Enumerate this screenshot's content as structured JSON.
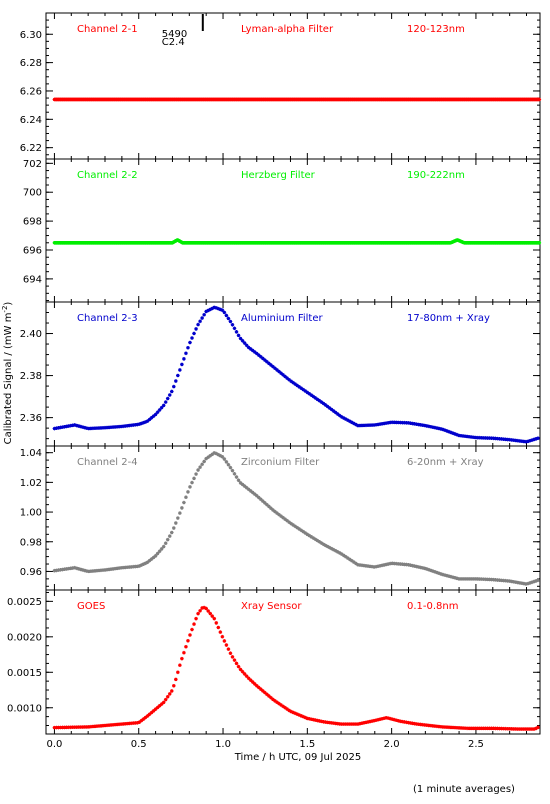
{
  "figure": {
    "ylabel": "Calibrated Signal / (mW m",
    "ylabel_sup": "-2",
    "ylabel_close": ")",
    "xlabel": "Time / h UTC, 09 Jul 2025",
    "footnote": "(1 minute averages)",
    "xticks": [
      "0.0",
      "0.5",
      "1.0",
      "1.5",
      "2.0",
      "2.5"
    ],
    "xlim": [
      -0.05,
      2.88
    ],
    "flare_marker": {
      "x": 0.88,
      "labels": [
        "5490",
        "C2.4"
      ]
    }
  },
  "chart_data": [
    {
      "type": "scatter",
      "channel_label": "Channel 2-1",
      "filter_label": "Lyman-alpha Filter",
      "band_label": "120-123nm",
      "color": "#ff0000",
      "ylim": [
        6.212,
        6.315
      ],
      "yticks": [
        "6.22",
        "6.24",
        "6.26",
        "6.28",
        "6.30"
      ],
      "x": [
        0.0,
        0.5,
        1.0,
        1.5,
        2.0,
        2.5,
        2.88
      ],
      "y": [
        6.254,
        6.254,
        6.254,
        6.254,
        6.254,
        6.254,
        6.254
      ]
    },
    {
      "type": "scatter",
      "channel_label": "Channel 2-2",
      "filter_label": "Herzberg Filter",
      "band_label": "190-222nm",
      "color": "#00ee00",
      "ylim": [
        692.4,
        702.3
      ],
      "yticks": [
        "694",
        "696",
        "698",
        "700",
        "702"
      ],
      "x": [
        0.0,
        0.5,
        0.7,
        0.73,
        0.76,
        1.0,
        1.5,
        2.0,
        2.35,
        2.39,
        2.43,
        2.88
      ],
      "y": [
        696.5,
        696.5,
        696.5,
        696.7,
        696.5,
        696.5,
        696.5,
        696.5,
        696.5,
        696.7,
        696.5,
        696.5
      ]
    },
    {
      "type": "scatter",
      "channel_label": "Channel 2-3",
      "filter_label": "Aluminium Filter",
      "band_label": "17-80nm + Xray",
      "color": "#0000cc",
      "ylim": [
        2.3465,
        2.415
      ],
      "yticks": [
        "2.36",
        "2.38",
        "2.40"
      ],
      "x": [
        0.0,
        0.12,
        0.2,
        0.3,
        0.4,
        0.5,
        0.55,
        0.6,
        0.65,
        0.7,
        0.75,
        0.8,
        0.85,
        0.9,
        0.95,
        1.0,
        1.05,
        1.1,
        1.15,
        1.2,
        1.3,
        1.4,
        1.5,
        1.6,
        1.7,
        1.8,
        1.9,
        2.0,
        2.1,
        2.2,
        2.3,
        2.4,
        2.5,
        2.6,
        2.7,
        2.8,
        2.88
      ],
      "y": [
        2.3548,
        2.3565,
        2.3548,
        2.3552,
        2.3558,
        2.3568,
        2.3582,
        2.3615,
        2.366,
        2.373,
        2.384,
        2.395,
        2.404,
        2.4105,
        2.4125,
        2.411,
        2.405,
        2.398,
        2.3935,
        2.3905,
        2.384,
        2.3775,
        2.372,
        2.3665,
        2.3605,
        2.3562,
        2.3565,
        2.3578,
        2.3575,
        2.3562,
        2.3545,
        2.3515,
        2.3505,
        2.3502,
        2.3495,
        2.3485,
        2.3505
      ]
    },
    {
      "type": "scatter",
      "channel_label": "Channel 2-4",
      "filter_label": "Zirconium Filter",
      "band_label": "6-20nm + Xray",
      "color": "#808080",
      "ylim": [
        0.9475,
        1.0445
      ],
      "yticks": [
        "0.96",
        "0.98",
        "1.00",
        "1.02",
        "1.04"
      ],
      "x": [
        0.0,
        0.12,
        0.2,
        0.3,
        0.4,
        0.5,
        0.55,
        0.6,
        0.65,
        0.7,
        0.75,
        0.8,
        0.85,
        0.9,
        0.95,
        1.0,
        1.05,
        1.1,
        1.15,
        1.2,
        1.3,
        1.4,
        1.5,
        1.6,
        1.7,
        1.8,
        1.9,
        2.0,
        2.1,
        2.2,
        2.3,
        2.4,
        2.5,
        2.6,
        2.7,
        2.8,
        2.88
      ],
      "y": [
        0.9605,
        0.9625,
        0.96,
        0.961,
        0.9625,
        0.9635,
        0.966,
        0.9705,
        0.977,
        0.987,
        1.001,
        1.016,
        1.028,
        1.036,
        1.04,
        1.037,
        1.029,
        1.02,
        1.0155,
        1.011,
        1.001,
        0.9925,
        0.985,
        0.978,
        0.972,
        0.9645,
        0.963,
        0.9655,
        0.9645,
        0.962,
        0.958,
        0.955,
        0.955,
        0.9545,
        0.9535,
        0.9515,
        0.9545
      ]
    },
    {
      "type": "scatter",
      "channel_label": "GOES",
      "filter_label": "Xray Sensor",
      "band_label": "0.1-0.8nm",
      "color": "#ff0000",
      "ylim": [
        0.00063,
        0.00266
      ],
      "yticks": [
        "0.0010",
        "0.0015",
        "0.0020",
        "0.0025"
      ],
      "x": [
        0.0,
        0.2,
        0.3,
        0.4,
        0.5,
        0.55,
        0.6,
        0.65,
        0.7,
        0.72,
        0.75,
        0.8,
        0.85,
        0.88,
        0.9,
        0.95,
        1.0,
        1.05,
        1.1,
        1.15,
        1.2,
        1.3,
        1.4,
        1.5,
        1.6,
        1.7,
        1.8,
        1.9,
        1.97,
        2.05,
        2.15,
        2.3,
        2.45,
        2.6,
        2.75,
        2.85,
        2.88
      ],
      "y": [
        0.00072,
        0.00073,
        0.00075,
        0.00077,
        0.00079,
        0.00088,
        0.00098,
        0.00108,
        0.00125,
        0.0014,
        0.00165,
        0.002,
        0.00232,
        0.00242,
        0.0024,
        0.00225,
        0.00198,
        0.00174,
        0.00155,
        0.00142,
        0.00131,
        0.00111,
        0.00095,
        0.00085,
        0.0008,
        0.00077,
        0.00077,
        0.00082,
        0.00086,
        0.00081,
        0.00077,
        0.00073,
        0.00071,
        0.00071,
        0.0007,
        0.0007,
        0.00074
      ]
    }
  ]
}
